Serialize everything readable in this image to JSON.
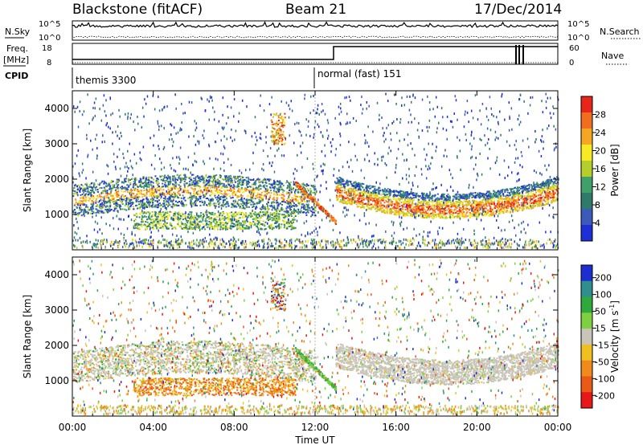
{
  "header": {
    "station": "Blackstone (fitACF)",
    "beam": "Beam 21",
    "date": "17/Dec/2014"
  },
  "meta_panels": {
    "nsky_label": "N.Sky",
    "nsky_ticks": [
      "10^5",
      "10^0"
    ],
    "nsearch_label": "N.Search",
    "nsearch_ticks": [
      "10^5",
      "10^0"
    ],
    "freq_label": "Freq.",
    "freq_unit": "[MHz]",
    "freq_ticks": [
      "18",
      "8"
    ],
    "nave_label": "Nave",
    "nave_ticks": [
      "60",
      "0"
    ],
    "cpid_label": "CPID",
    "cpid_segments": [
      {
        "label": "themis 3300",
        "start_hour": 0,
        "end_hour": 12
      },
      {
        "label": "normal (fast) 151",
        "start_hour": 12,
        "end_hour": 24
      }
    ]
  },
  "x_axis": {
    "label": "Time UT",
    "ticks": [
      "00:00",
      "04:00",
      "08:00",
      "12:00",
      "16:00",
      "20:00",
      "00:00"
    ]
  },
  "colors": {
    "power_scale": [
      "#1f2fd6",
      "#3c5ab8",
      "#2f7a6a",
      "#3fa06a",
      "#b5cf2a",
      "#f6ea25",
      "#f5a623",
      "#f06e1e",
      "#e8251a"
    ],
    "velocity_scale": [
      "#1d2ecf",
      "#2f8f8f",
      "#2fa83c",
      "#7fd040",
      "#c9c4b8",
      "#f0c020",
      "#f08a1a",
      "#e85a16",
      "#e81818"
    ]
  },
  "chart_data": [
    {
      "type": "heatmap",
      "panel": "power",
      "ylabel": "Slant Range [km]",
      "yticks": [
        "1000",
        "2000",
        "3000",
        "4000"
      ],
      "ylim": [
        0,
        4500
      ],
      "xlim_hours": [
        0,
        24
      ],
      "colorbar_label": "Power [dB]",
      "colorbar_ticks": [
        "4",
        "8",
        "12",
        "16",
        "20",
        "24",
        "28"
      ],
      "colorbar_range": [
        0,
        30
      ]
    },
    {
      "type": "heatmap",
      "panel": "velocity",
      "ylabel": "Slant Range [km]",
      "yticks": [
        "1000",
        "2000",
        "3000",
        "4000"
      ],
      "ylim": [
        0,
        4500
      ],
      "xlim_hours": [
        0,
        24
      ],
      "colorbar_label_main": "Velocity [m s",
      "colorbar_label_sup": "-1",
      "colorbar_label_end": "]",
      "colorbar_ticks": [
        "200",
        "100",
        "50",
        "15",
        "-15",
        "-50",
        "-100",
        "-200"
      ],
      "colorbar_range": [
        -250,
        250
      ]
    }
  ]
}
